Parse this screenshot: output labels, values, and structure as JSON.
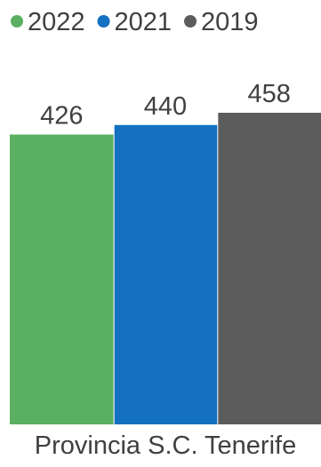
{
  "chart_data": {
    "type": "bar",
    "categories": [
      "Provincia S.C. Tenerife"
    ],
    "series": [
      {
        "name": "2022",
        "values": [
          426
        ],
        "color": "#5BAF63"
      },
      {
        "name": "2021",
        "values": [
          440
        ],
        "color": "#1470C0"
      },
      {
        "name": "2019",
        "values": [
          458
        ],
        "color": "#5C5C5C"
      }
    ],
    "legend_position": "top-left",
    "ylim": [
      0,
      458
    ],
    "grid": false,
    "data_labels": true
  }
}
